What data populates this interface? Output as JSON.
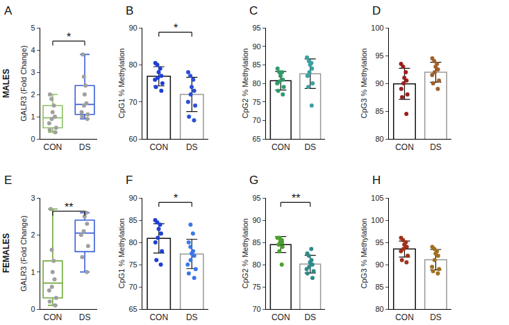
{
  "row_labels": [
    "MALES",
    "FEMALES"
  ],
  "chart_data": [
    {
      "type": "box",
      "title": "A",
      "ylabel": "GALR3 (Fold Change)",
      "categories": [
        "CON",
        "DS"
      ],
      "points": [
        [
          0.3,
          0.4,
          0.5,
          0.7,
          0.9,
          1.0,
          1.2,
          1.5,
          1.8,
          2.0
        ],
        [
          0.9,
          1.0,
          1.1,
          1.2,
          1.5,
          1.6,
          2.0,
          2.4,
          2.8,
          3.8
        ]
      ],
      "colors": [
        "#8cc063",
        "#3a5fd8"
      ],
      "color": "#a0a0a0",
      "ylim": [
        0,
        5
      ],
      "yticks": [
        0,
        1,
        2,
        3,
        4,
        5
      ],
      "annotations": [
        "*"
      ]
    },
    {
      "type": "bar",
      "title": "B",
      "ylabel": "CpG1 % Methylation",
      "categories": [
        "CON",
        "DS"
      ],
      "values": [
        76.9,
        72.0
      ],
      "errors": [
        2.6,
        4.6
      ],
      "points": [
        [
          80.5,
          80,
          79,
          78,
          77,
          76.5,
          76,
          75,
          74,
          73
        ],
        [
          78,
          77,
          76,
          74,
          73,
          72,
          70,
          69,
          66,
          65
        ]
      ],
      "colors": [
        "#1f3fd6",
        "#2b4fd8"
      ],
      "ylim": [
        60,
        90
      ],
      "yticks": [
        60,
        70,
        80,
        90
      ],
      "annotations": [
        "*"
      ]
    },
    {
      "type": "bar",
      "title": "C",
      "ylabel": "CpG2 % Methylation",
      "categories": [
        "CON",
        "DS"
      ],
      "values": [
        80.7,
        82.6
      ],
      "errors": [
        2.5,
        4.0
      ],
      "points": [
        [
          84,
          83,
          82,
          81,
          80.5,
          80,
          79,
          78,
          77,
          83
        ],
        [
          87,
          86,
          85.5,
          85,
          84,
          83,
          82,
          80,
          79,
          74
        ]
      ],
      "colors": [
        "#2e9a68",
        "#3aa0a0"
      ],
      "ylim": [
        65,
        95
      ],
      "yticks": [
        65,
        70,
        75,
        80,
        85,
        90,
        95
      ]
    },
    {
      "type": "bar",
      "title": "D",
      "ylabel": "CpG3 % Methylation",
      "categories": [
        "CON",
        "DS"
      ],
      "values": [
        89.9,
        92.0
      ],
      "errors": [
        2.8,
        1.8
      ],
      "points": [
        [
          93.5,
          93,
          92,
          91,
          90.5,
          90,
          89,
          88,
          87.5,
          84.5
        ],
        [
          94.5,
          94,
          93.5,
          93,
          92.5,
          92,
          91.5,
          90.5,
          90,
          89
        ]
      ],
      "colors": [
        "#9a1f1f",
        "#a0602a"
      ],
      "ylim": [
        80,
        100
      ],
      "yticks": [
        80,
        85,
        90,
        95,
        100
      ]
    },
    {
      "type": "box",
      "title": "E",
      "ylabel": "GALR3 (Fold Change)",
      "categories": [
        "CON",
        "DS"
      ],
      "points": [
        [
          0.1,
          0.2,
          0.3,
          0.5,
          0.6,
          0.8,
          1.0,
          1.3,
          1.6,
          2.7
        ],
        [
          1.0,
          1.4,
          1.7,
          2.0,
          2.1,
          2.3,
          2.5,
          2.6
        ]
      ],
      "colors": [
        "#6fa83a",
        "#3a5fd8"
      ],
      "color": "#a0a0a0",
      "ylim": [
        0,
        3
      ],
      "yticks": [
        0,
        1,
        2,
        3
      ],
      "annotations": [
        "**"
      ]
    },
    {
      "type": "bar",
      "title": "F",
      "ylabel": "CpG1 % Methylation",
      "categories": [
        "CON",
        "DS"
      ],
      "values": [
        80.9,
        77.4
      ],
      "errors": [
        3.3,
        3.3
      ],
      "points": [
        [
          85,
          84.5,
          84,
          83,
          82,
          81,
          80,
          78,
          76,
          75
        ],
        [
          84,
          82,
          80,
          79,
          78,
          77.5,
          77,
          76,
          75,
          74,
          73,
          72
        ]
      ],
      "colors": [
        "#1f3fd6",
        "#3a78e8"
      ],
      "ylim": [
        65,
        90
      ],
      "yticks": [
        65,
        70,
        75,
        80,
        85,
        90
      ],
      "annotations": [
        "*"
      ]
    },
    {
      "type": "bar",
      "title": "G",
      "ylabel": "CpG2 % Methylation",
      "categories": [
        "CON",
        "DS"
      ],
      "values": [
        84.5,
        80.1
      ],
      "errors": [
        1.8,
        2.0
      ],
      "points": [
        [
          86,
          86,
          85.5,
          85.5,
          85,
          85,
          84.5,
          84,
          83,
          80
        ],
        [
          83.5,
          82.5,
          82,
          81,
          80.5,
          80,
          79.5,
          79,
          78.5,
          78,
          77
        ]
      ],
      "colors": [
        "#4aa02c",
        "#2f8a8a"
      ],
      "ylim": [
        70,
        95
      ],
      "yticks": [
        70,
        75,
        80,
        85,
        90,
        95
      ],
      "annotations": [
        "**"
      ]
    },
    {
      "type": "bar",
      "title": "H",
      "ylabel": "CpG3 % Methylation",
      "categories": [
        "CON",
        "DS"
      ],
      "values": [
        93.5,
        91.1
      ],
      "errors": [
        1.8,
        2.3
      ],
      "points": [
        [
          96,
          95.5,
          95,
          94.5,
          94,
          93.5,
          93,
          92,
          91,
          90.5
        ],
        [
          94,
          93.5,
          93,
          92.5,
          92,
          91,
          89.5,
          89,
          88.5,
          88
        ]
      ],
      "colors": [
        "#a0301a",
        "#a07020"
      ],
      "ylim": [
        80,
        105
      ],
      "yticks": [
        80,
        85,
        90,
        95,
        100,
        105
      ]
    }
  ]
}
